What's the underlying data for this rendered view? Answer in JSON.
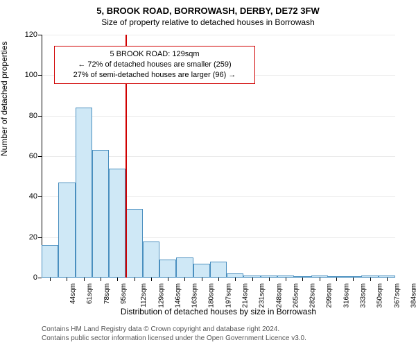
{
  "title_main": "5, BROOK ROAD, BORROWASH, DERBY, DE72 3FW",
  "title_sub": "Size of property relative to detached houses in Borrowash",
  "y_axis_label": "Number of detached properties",
  "x_axis_label": "Distribution of detached houses by size in Borrowash",
  "footer_line1": "Contains HM Land Registry data © Crown copyright and database right 2024.",
  "footer_line2": "Contains public sector information licensed under the Open Government Licence v3.0.",
  "chart": {
    "type": "histogram",
    "ylim": [
      0,
      120
    ],
    "ytick_step": 20,
    "yticks": [
      0,
      20,
      40,
      60,
      80,
      100,
      120
    ],
    "bar_fill": "#cfe8f6",
    "bar_border": "#4a8fbf",
    "background": "#ffffff",
    "reference_line_color": "#d00000",
    "reference_value_x_index": 5,
    "info_border_color": "#d00000",
    "info_lines": [
      "5 BROOK ROAD: 129sqm",
      "← 72% of detached houses are smaller (259)",
      "27% of semi-detached houses are larger (96) →"
    ],
    "categories": [
      "44sqm",
      "61sqm",
      "78sqm",
      "95sqm",
      "112sqm",
      "129sqm",
      "146sqm",
      "163sqm",
      "180sqm",
      "197sqm",
      "214sqm",
      "231sqm",
      "248sqm",
      "265sqm",
      "282sqm",
      "299sqm",
      "316sqm",
      "333sqm",
      "350sqm",
      "367sqm",
      "384sqm"
    ],
    "values": [
      16,
      47,
      84,
      63,
      54,
      34,
      18,
      9,
      10,
      7,
      8,
      2,
      1,
      1,
      1,
      0,
      1,
      0,
      0,
      1,
      1
    ],
    "bar_width_ratio": 1.0,
    "label_fontsize": 12,
    "tick_fontsize": 11
  }
}
